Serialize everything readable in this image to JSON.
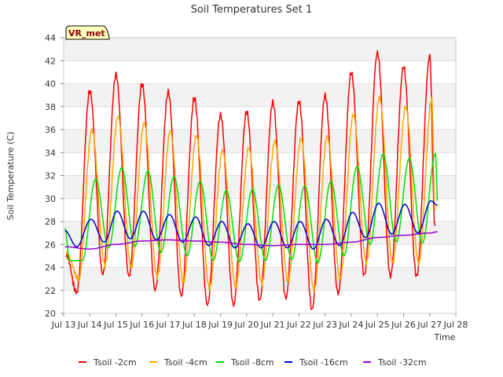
{
  "chart_data": {
    "type": "line",
    "title": "Soil Temperatures Set 1",
    "xlabel": "Time",
    "ylabel": "Soil Temperature (C)",
    "badge": "VR_met",
    "xlim": [
      13,
      28
    ],
    "ylim": [
      20,
      44
    ],
    "x_ticks": [
      {
        "x": 13,
        "label": "Jul 13"
      },
      {
        "x": 14,
        "label": "Jul 14"
      },
      {
        "x": 15,
        "label": "Jul 15"
      },
      {
        "x": 16,
        "label": "Jul 16"
      },
      {
        "x": 17,
        "label": "Jul 17"
      },
      {
        "x": 18,
        "label": "Jul 18"
      },
      {
        "x": 19,
        "label": "Jul 19"
      },
      {
        "x": 20,
        "label": "Jul 20"
      },
      {
        "x": 21,
        "label": "Jul 21"
      },
      {
        "x": 22,
        "label": "Jul 22"
      },
      {
        "x": 23,
        "label": "Jul 23"
      },
      {
        "x": 24,
        "label": "Jul 24"
      },
      {
        "x": 25,
        "label": "Jul 25"
      },
      {
        "x": 26,
        "label": "Jul 26"
      },
      {
        "x": 27,
        "label": "Jul 27"
      },
      {
        "x": 28,
        "label": "Jul 28"
      }
    ],
    "y_ticks": [
      20,
      22,
      24,
      26,
      28,
      30,
      32,
      34,
      36,
      38,
      40,
      42,
      44
    ],
    "grid": true,
    "legend_position": "bottom",
    "series": [
      {
        "name": "Tsoil -2cm",
        "color": "#ff0000",
        "phase": 0.5,
        "daily": [
          [
            13.1,
            25.1
          ],
          [
            13.5,
            21.8
          ],
          [
            14.0,
            39.4
          ],
          [
            14.5,
            23.4
          ],
          [
            15.0,
            40.8
          ],
          [
            15.5,
            23.2
          ],
          [
            16.0,
            40.0
          ],
          [
            16.5,
            22.0
          ],
          [
            17.0,
            39.3
          ],
          [
            17.5,
            21.5
          ],
          [
            18.0,
            38.8
          ],
          [
            18.5,
            20.7
          ],
          [
            19.0,
            37.3
          ],
          [
            19.5,
            20.7
          ],
          [
            20.0,
            37.6
          ],
          [
            20.5,
            21.1
          ],
          [
            21.0,
            38.4
          ],
          [
            21.5,
            21.3
          ],
          [
            22.0,
            38.5
          ],
          [
            22.5,
            20.3
          ],
          [
            23.0,
            39.0
          ],
          [
            23.5,
            21.7
          ],
          [
            24.0,
            41.0
          ],
          [
            24.5,
            23.3
          ],
          [
            25.0,
            42.7
          ],
          [
            25.5,
            23.2
          ],
          [
            26.0,
            41.5
          ],
          [
            26.5,
            23.2
          ],
          [
            27.0,
            42.4
          ],
          [
            27.2,
            27.6
          ]
        ]
      },
      {
        "name": "Tsoil -4cm",
        "color": "#ffa500",
        "phase": 0.58,
        "daily": [
          [
            13.1,
            25.3
          ],
          [
            13.58,
            23.0
          ],
          [
            14.08,
            36.0
          ],
          [
            14.58,
            24.2
          ],
          [
            15.08,
            37.2
          ],
          [
            15.58,
            24.0
          ],
          [
            16.08,
            36.6
          ],
          [
            16.58,
            23.2
          ],
          [
            17.08,
            35.9
          ],
          [
            17.58,
            22.7
          ],
          [
            18.08,
            35.5
          ],
          [
            18.58,
            22.2
          ],
          [
            19.08,
            34.2
          ],
          [
            19.58,
            22.3
          ],
          [
            20.08,
            34.4
          ],
          [
            20.58,
            22.6
          ],
          [
            21.08,
            35.0
          ],
          [
            21.58,
            22.8
          ],
          [
            22.08,
            35.2
          ],
          [
            22.58,
            22.0
          ],
          [
            23.08,
            35.4
          ],
          [
            23.58,
            23.0
          ],
          [
            24.08,
            37.3
          ],
          [
            24.58,
            24.4
          ],
          [
            25.08,
            38.8
          ],
          [
            25.58,
            24.4
          ],
          [
            26.08,
            38.0
          ],
          [
            26.58,
            24.3
          ],
          [
            27.08,
            38.7
          ],
          [
            27.2,
            29.0
          ]
        ]
      },
      {
        "name": "Tsoil -8cm",
        "color": "#00e000",
        "phase": 0.72,
        "daily": [
          [
            13.05,
            27.4
          ],
          [
            13.22,
            24.6
          ],
          [
            13.72,
            24.6
          ],
          [
            14.22,
            31.7
          ],
          [
            14.72,
            25.7
          ],
          [
            15.22,
            32.7
          ],
          [
            15.72,
            25.8
          ],
          [
            16.22,
            32.4
          ],
          [
            16.72,
            25.3
          ],
          [
            17.22,
            31.9
          ],
          [
            17.72,
            25.0
          ],
          [
            18.22,
            31.5
          ],
          [
            18.72,
            24.6
          ],
          [
            19.22,
            30.7
          ],
          [
            19.72,
            24.5
          ],
          [
            20.22,
            30.8
          ],
          [
            20.72,
            24.6
          ],
          [
            21.22,
            31.2
          ],
          [
            21.72,
            24.7
          ],
          [
            22.22,
            31.1
          ],
          [
            22.72,
            24.4
          ],
          [
            23.22,
            31.5
          ],
          [
            23.72,
            25.0
          ],
          [
            24.22,
            32.8
          ],
          [
            24.72,
            26.0
          ],
          [
            25.22,
            33.9
          ],
          [
            25.72,
            26.2
          ],
          [
            26.22,
            33.5
          ],
          [
            26.72,
            26.1
          ],
          [
            27.22,
            33.9
          ],
          [
            27.3,
            29.8
          ]
        ]
      },
      {
        "name": "Tsoil -16cm",
        "color": "#0000cc",
        "phase": 0.05,
        "daily": [
          [
            13.05,
            27.2
          ],
          [
            13.5,
            25.8
          ],
          [
            13.05,
            27.2
          ],
          [
            14.05,
            28.2
          ],
          [
            14.55,
            26.2
          ],
          [
            15.05,
            28.9
          ],
          [
            15.55,
            26.5
          ],
          [
            16.05,
            28.9
          ],
          [
            16.55,
            26.4
          ],
          [
            17.05,
            28.6
          ],
          [
            17.55,
            26.2
          ],
          [
            18.05,
            28.4
          ],
          [
            18.55,
            25.9
          ],
          [
            19.05,
            28.0
          ],
          [
            19.55,
            25.7
          ],
          [
            20.05,
            27.8
          ],
          [
            20.55,
            25.7
          ],
          [
            21.05,
            28.0
          ],
          [
            21.55,
            25.7
          ],
          [
            22.05,
            28.0
          ],
          [
            22.55,
            25.6
          ],
          [
            23.05,
            28.2
          ],
          [
            23.55,
            25.9
          ],
          [
            24.05,
            28.8
          ],
          [
            24.55,
            26.6
          ],
          [
            25.05,
            29.6
          ],
          [
            25.55,
            26.9
          ],
          [
            26.05,
            29.5
          ],
          [
            26.55,
            27.0
          ],
          [
            27.05,
            29.8
          ],
          [
            27.3,
            29.4
          ]
        ]
      },
      {
        "name": "Tsoil -32cm",
        "color": "#9a00d0",
        "phase": 0.0,
        "daily": [
          [
            13.05,
            25.8
          ],
          [
            14.0,
            25.6
          ],
          [
            15.0,
            26.0
          ],
          [
            16.0,
            26.3
          ],
          [
            17.0,
            26.4
          ],
          [
            18.0,
            26.3
          ],
          [
            19.0,
            26.2
          ],
          [
            20.0,
            26.0
          ],
          [
            21.0,
            25.9
          ],
          [
            22.0,
            26.0
          ],
          [
            23.0,
            26.0
          ],
          [
            24.0,
            26.2
          ],
          [
            25.0,
            26.6
          ],
          [
            26.0,
            26.8
          ],
          [
            27.0,
            27.0
          ],
          [
            27.3,
            27.1
          ]
        ]
      }
    ]
  }
}
